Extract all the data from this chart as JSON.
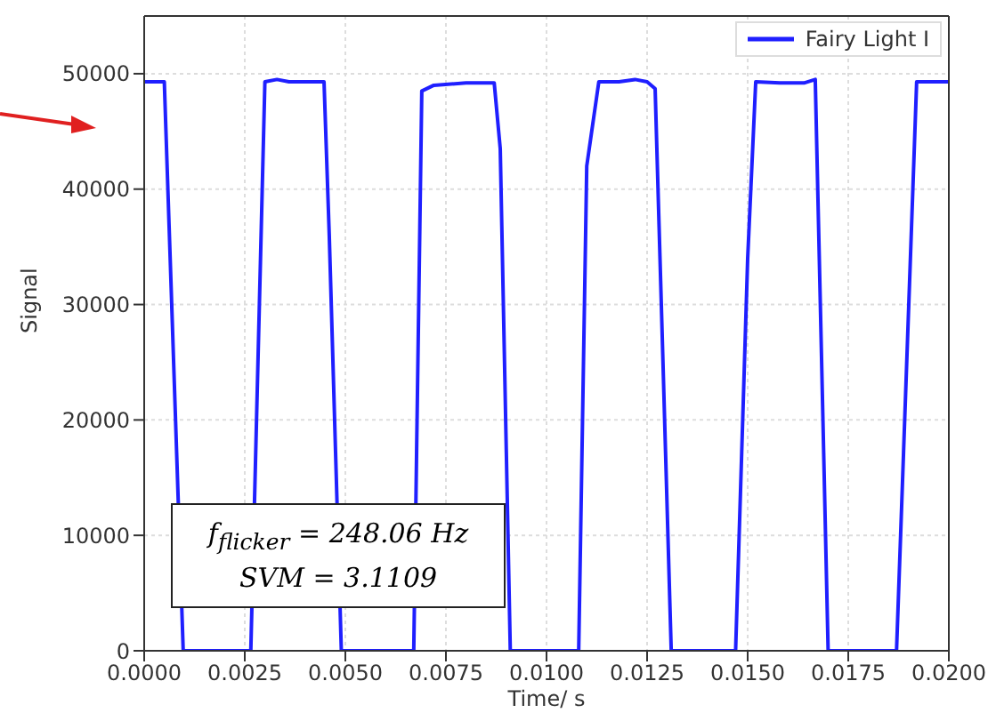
{
  "chart_data": {
    "type": "line",
    "xlabel": "Time/ s",
    "ylabel": "Signal",
    "xlim": [
      0,
      0.02
    ],
    "ylim": [
      0,
      55000
    ],
    "xticks": [
      {
        "value": 0,
        "label": "0.0000"
      },
      {
        "value": 0.0025,
        "label": "0.0025"
      },
      {
        "value": 0.005,
        "label": "0.0050"
      },
      {
        "value": 0.0075,
        "label": "0.0075"
      },
      {
        "value": 0.01,
        "label": "0.0100"
      },
      {
        "value": 0.0125,
        "label": "0.0125"
      },
      {
        "value": 0.015,
        "label": "0.0150"
      },
      {
        "value": 0.0175,
        "label": "0.0175"
      },
      {
        "value": 0.02,
        "label": "0.0200"
      }
    ],
    "yticks": [
      0,
      10000,
      20000,
      30000,
      40000,
      50000
    ],
    "grid": true,
    "legend": "top right",
    "marker": "none",
    "line_style": "solid",
    "annotations": [
      "f$_{flicker}$ = 248.06 Hz",
      "SVM = 3.1109"
    ],
    "series": [
      {
        "name": "Fairy Light I",
        "color": "#1f1fff",
        "x": [
          0,
          0.0005,
          0.00097,
          0.0015,
          0.00265,
          0.003,
          0.0033,
          0.0036,
          0.00447,
          0.0046,
          0.0049,
          0.0055,
          0.0067,
          0.0069,
          0.0072,
          0.008,
          0.0087,
          0.00885,
          0.0091,
          0.01,
          0.0108,
          0.011,
          0.0113,
          0.0118,
          0.0122,
          0.0125,
          0.0127,
          0.0131,
          0.014,
          0.0147,
          0.015,
          0.0152,
          0.0158,
          0.0164,
          0.01668,
          0.017,
          0.018,
          0.0187,
          0.0192,
          0.02
        ],
        "values": [
          49300,
          49300,
          0,
          0,
          0,
          49300,
          49500,
          49300,
          49300,
          36000,
          0,
          0,
          0,
          48500,
          49000,
          49200,
          49200,
          43500,
          0,
          0,
          0,
          42000,
          49300,
          49300,
          49500,
          49300,
          48700,
          0,
          0,
          0,
          34000,
          49300,
          49200,
          49200,
          49500,
          0,
          0,
          0,
          49300,
          49300
        ]
      }
    ]
  }
}
